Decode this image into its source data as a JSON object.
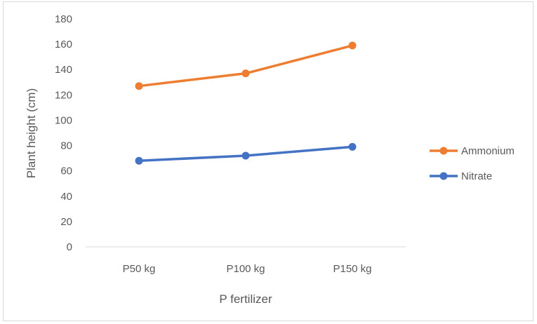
{
  "chart_data": {
    "type": "line",
    "title": "",
    "xlabel": "P fertilizer",
    "ylabel": "Plant height (cm)",
    "categories": [
      "P50 kg",
      "P100 kg",
      "P150 kg"
    ],
    "ylim": [
      0,
      180
    ],
    "yticks": [
      0,
      20,
      40,
      60,
      80,
      100,
      120,
      140,
      160,
      180
    ],
    "grid": false,
    "legend_position": "right",
    "series": [
      {
        "name": "Ammonium",
        "values": [
          127,
          137,
          159
        ],
        "color": "#ED7D31"
      },
      {
        "name": "Nitrate",
        "values": [
          68,
          72,
          79
        ],
        "color": "#4472C4"
      }
    ]
  }
}
